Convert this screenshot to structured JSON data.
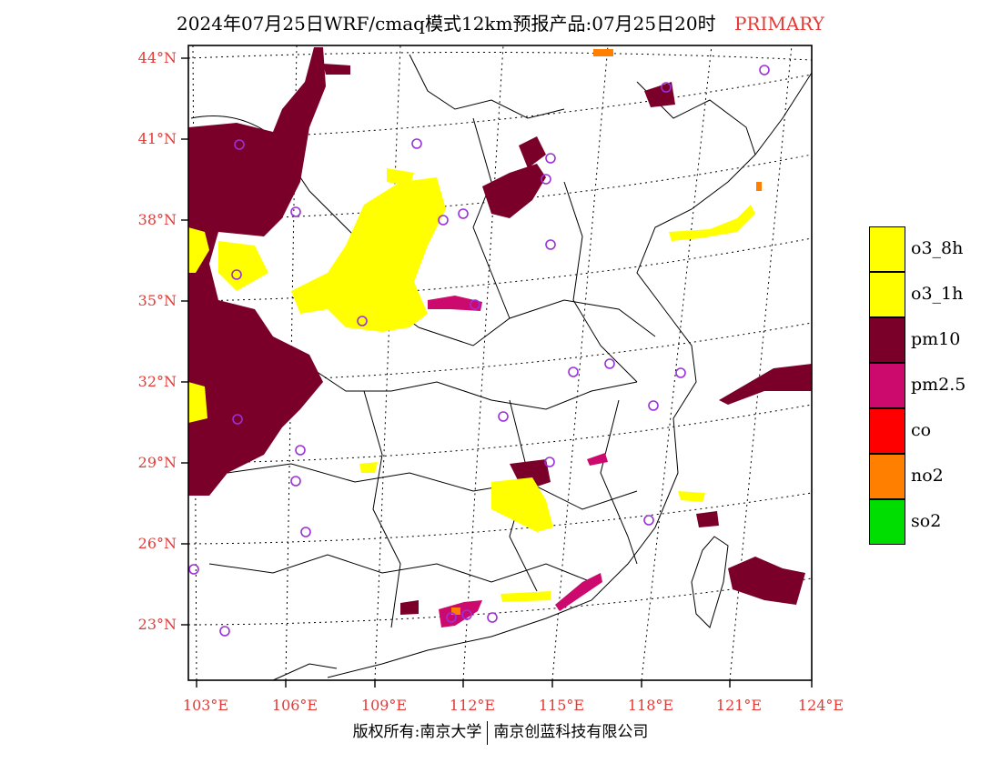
{
  "title": {
    "main": "2024年07月25日WRF/cmaq模式12km预报产品:07月25日20时",
    "tag": "PRIMARY"
  },
  "latitude_labels": [
    "44°N",
    "41°N",
    "38°N",
    "35°N",
    "32°N",
    "29°N",
    "26°N",
    "23°N"
  ],
  "longitude_labels": [
    "103°E",
    "106°E",
    "109°E",
    "112°E",
    "115°E",
    "118°E",
    "121°E",
    "124°E"
  ],
  "legend": {
    "items": [
      {
        "label": "o3_8h",
        "color": "#ffff00"
      },
      {
        "label": "o3_1h",
        "color": "#ffff00"
      },
      {
        "label": "pm10",
        "color": "#7a0029"
      },
      {
        "label": "pm2.5",
        "color": "#cc0a6e"
      },
      {
        "label": "co",
        "color": "#ff0000"
      },
      {
        "label": "no2",
        "color": "#ff7f00"
      },
      {
        "label": "so2",
        "color": "#00dd00"
      }
    ]
  },
  "copyright": {
    "left": "版权所有:南京大学",
    "right": "南京创蓝科技有限公司"
  },
  "colors": {
    "label_red": "#e53935",
    "station_marker": "#9b30d9"
  }
}
